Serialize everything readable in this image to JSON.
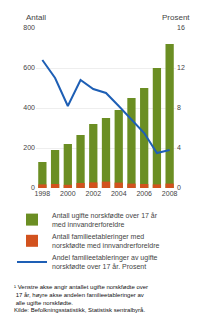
{
  "chart_data": {
    "type": "bar",
    "ylabel": "Antall",
    "y2label": "Prosent",
    "categories": [
      "1998",
      null,
      "2000",
      null,
      "2002",
      null,
      "2004",
      null,
      "2006",
      null,
      "2008"
    ],
    "series": [
      {
        "name": "Antall ugifte norskfødte over 17 år\nmed innvandrerforeldre",
        "type": "bar",
        "color": "#6b8e23",
        "values": [
          130,
          190,
          220,
          265,
          320,
          350,
          390,
          450,
          500,
          600,
          720
        ]
      },
      {
        "name": "Antall familieetableringer med\nnorskfødte med innvandrerforeldre",
        "type": "bar",
        "color": "#d2521e",
        "values": [
          18,
          20,
          16,
          25,
          28,
          32,
          27,
          22,
          20,
          18,
          22
        ]
      },
      {
        "name": "Andel familieetableringer av ugifte\nnorskfødte over 17 år. Prosent",
        "type": "line",
        "color": "#1e5fb5",
        "axis": "y2",
        "values": [
          12.8,
          11.0,
          8.2,
          10.8,
          9.9,
          9.5,
          8.2,
          6.8,
          5.5,
          3.5,
          3.8
        ]
      }
    ],
    "ylim": [
      0,
      800
    ],
    "yticks": [
      0,
      200,
      400,
      600,
      800
    ],
    "y2lim": [
      0,
      16
    ],
    "y2ticks": [
      0,
      4,
      8,
      12,
      16
    ],
    "grid": true,
    "legend": "bottom",
    "annotations": [
      "¹ Venstre akse angir antallet ugifte norskfødte over\n 17 år, høyre akse andelen familieetableringer av\n alle ugifte norskfødte.\nKilde: Befolkningsstatistikk, Statistisk sentralbyrå."
    ]
  }
}
